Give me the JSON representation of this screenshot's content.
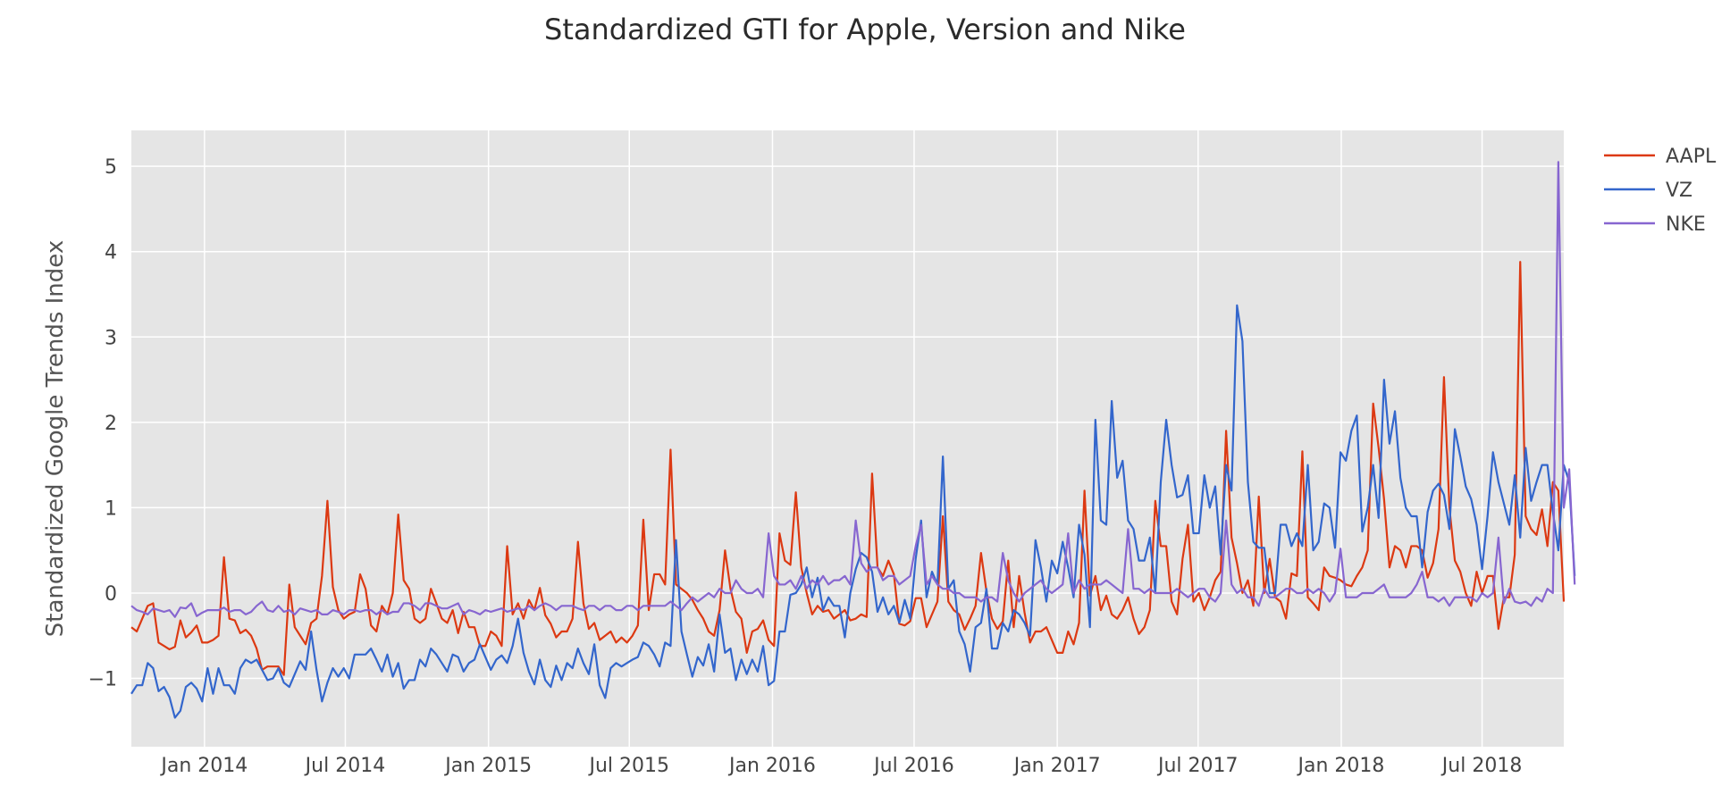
{
  "chart_data": {
    "type": "line",
    "title": "Standardized GTI for Apple, Version and Nike",
    "xlabel": "",
    "ylabel": "Standardized Google Trends Index",
    "x_start": "2013-09-29",
    "x_end": "2018-10-14",
    "x_step_days": 7,
    "ylim": [
      -1.8,
      5.42
    ],
    "yticks": [
      -1,
      0,
      1,
      2,
      3,
      4,
      5
    ],
    "ytick_labels": [
      "−1",
      "0",
      "1",
      "2",
      "3",
      "4",
      "5"
    ],
    "xticks": [
      {
        "date": "2014-01-01",
        "label": "Jan 2014"
      },
      {
        "date": "2014-07-01",
        "label": "Jul 2014"
      },
      {
        "date": "2015-01-01",
        "label": "Jan 2015"
      },
      {
        "date": "2015-07-01",
        "label": "Jul 2015"
      },
      {
        "date": "2016-01-01",
        "label": "Jan 2016"
      },
      {
        "date": "2016-07-01",
        "label": "Jul 2016"
      },
      {
        "date": "2017-01-01",
        "label": "Jan 2017"
      },
      {
        "date": "2017-07-01",
        "label": "Jul 2017"
      },
      {
        "date": "2018-01-01",
        "label": "Jan 2018"
      },
      {
        "date": "2018-07-01",
        "label": "Jul 2018"
      }
    ],
    "grid": true,
    "background": "#e5e5e5",
    "legend_position": "top-right",
    "series": [
      {
        "name": "AAPL",
        "color": "#dc3912",
        "values": [
          -0.4,
          -0.45,
          -0.3,
          -0.15,
          -0.12,
          -0.58,
          -0.62,
          -0.66,
          -0.63,
          -0.32,
          -0.52,
          -0.46,
          -0.38,
          -0.58,
          -0.58,
          -0.55,
          -0.5,
          0.42,
          -0.3,
          -0.32,
          -0.47,
          -0.43,
          -0.5,
          -0.65,
          -0.9,
          -0.86,
          -0.86,
          -0.86,
          -0.96,
          0.1,
          -0.4,
          -0.5,
          -0.6,
          -0.35,
          -0.3,
          0.2,
          1.08,
          0.07,
          -0.2,
          -0.3,
          -0.25,
          -0.22,
          0.22,
          0.05,
          -0.38,
          -0.45,
          -0.15,
          -0.25,
          0.0,
          0.92,
          0.15,
          0.05,
          -0.3,
          -0.35,
          -0.3,
          0.05,
          -0.12,
          -0.3,
          -0.35,
          -0.2,
          -0.47,
          -0.22,
          -0.4,
          -0.4,
          -0.62,
          -0.62,
          -0.45,
          -0.5,
          -0.62,
          0.55,
          -0.25,
          -0.12,
          -0.3,
          -0.08,
          -0.2,
          0.06,
          -0.26,
          -0.36,
          -0.52,
          -0.45,
          -0.45,
          -0.3,
          0.6,
          -0.12,
          -0.42,
          -0.35,
          -0.55,
          -0.5,
          -0.45,
          -0.58,
          -0.52,
          -0.58,
          -0.5,
          -0.38,
          0.86,
          -0.2,
          0.22,
          0.22,
          0.1,
          1.68,
          0.1,
          0.05,
          0.0,
          -0.08,
          -0.2,
          -0.3,
          -0.45,
          -0.5,
          -0.2,
          0.5,
          0.05,
          -0.22,
          -0.3,
          -0.7,
          -0.45,
          -0.42,
          -0.32,
          -0.55,
          -0.62,
          0.7,
          0.38,
          0.33,
          1.18,
          0.3,
          0.0,
          -0.25,
          -0.15,
          -0.22,
          -0.2,
          -0.3,
          -0.25,
          -0.2,
          -0.32,
          -0.3,
          -0.25,
          -0.28,
          1.4,
          0.3,
          0.2,
          0.38,
          0.22,
          -0.36,
          -0.38,
          -0.33,
          -0.06,
          -0.06,
          -0.4,
          -0.25,
          -0.1,
          0.9,
          -0.1,
          -0.2,
          -0.25,
          -0.43,
          -0.3,
          -0.15,
          0.47,
          0.02,
          -0.3,
          -0.42,
          -0.33,
          0.38,
          -0.4,
          0.2,
          -0.23,
          -0.58,
          -0.45,
          -0.45,
          -0.4,
          -0.55,
          -0.7,
          -0.7,
          -0.45,
          -0.6,
          -0.35,
          1.2,
          -0.03,
          0.2,
          -0.2,
          -0.03,
          -0.25,
          -0.3,
          -0.2,
          -0.05,
          -0.3,
          -0.48,
          -0.4,
          -0.2,
          1.08,
          0.55,
          0.55,
          -0.1,
          -0.25,
          0.4,
          0.8,
          -0.1,
          0.0,
          -0.2,
          -0.05,
          0.15,
          0.25,
          1.9,
          0.65,
          0.35,
          0.0,
          0.15,
          -0.15,
          1.13,
          0.0,
          0.4,
          -0.05,
          -0.1,
          -0.3,
          0.23,
          0.2,
          1.66,
          -0.05,
          -0.12,
          -0.2,
          0.3,
          0.2,
          0.18,
          0.15,
          0.1,
          0.08,
          0.2,
          0.3,
          0.5,
          2.22,
          1.7,
          1.1,
          0.3,
          0.55,
          0.5,
          0.3,
          0.55,
          0.55,
          0.5,
          0.18,
          0.35,
          0.75,
          2.53,
          1.0,
          0.38,
          0.25,
          0.0,
          -0.15,
          0.25,
          0.0,
          0.2,
          0.2,
          -0.42,
          -0.05,
          -0.05,
          0.45,
          3.88,
          0.9,
          0.75,
          0.68,
          0.98,
          0.55,
          1.3,
          1.2,
          -0.1
        ]
      },
      {
        "name": "VZ",
        "color": "#3366cc",
        "values": [
          -1.18,
          -1.08,
          -1.08,
          -0.82,
          -0.88,
          -1.15,
          -1.1,
          -1.22,
          -1.46,
          -1.38,
          -1.1,
          -1.05,
          -1.12,
          -1.27,
          -0.88,
          -1.18,
          -0.88,
          -1.08,
          -1.08,
          -1.18,
          -0.88,
          -0.78,
          -0.82,
          -0.78,
          -0.9,
          -1.02,
          -1.0,
          -0.88,
          -1.05,
          -1.1,
          -0.95,
          -0.8,
          -0.9,
          -0.45,
          -0.9,
          -1.27,
          -1.05,
          -0.88,
          -0.98,
          -0.88,
          -1.0,
          -0.72,
          -0.72,
          -0.72,
          -0.65,
          -0.78,
          -0.92,
          -0.72,
          -0.98,
          -0.82,
          -1.12,
          -1.02,
          -1.02,
          -0.78,
          -0.86,
          -0.65,
          -0.72,
          -0.82,
          -0.92,
          -0.72,
          -0.75,
          -0.92,
          -0.82,
          -0.78,
          -0.6,
          -0.75,
          -0.9,
          -0.78,
          -0.73,
          -0.82,
          -0.62,
          -0.3,
          -0.7,
          -0.92,
          -1.07,
          -0.78,
          -1.02,
          -1.1,
          -0.85,
          -1.02,
          -0.82,
          -0.88,
          -0.65,
          -0.82,
          -0.95,
          -0.6,
          -1.08,
          -1.23,
          -0.88,
          -0.82,
          -0.86,
          -0.82,
          -0.78,
          -0.75,
          -0.58,
          -0.62,
          -0.72,
          -0.86,
          -0.58,
          -0.62,
          0.62,
          -0.45,
          -0.72,
          -0.98,
          -0.75,
          -0.85,
          -0.6,
          -0.92,
          -0.25,
          -0.7,
          -0.65,
          -1.02,
          -0.78,
          -0.95,
          -0.78,
          -0.92,
          -0.62,
          -1.08,
          -1.03,
          -0.45,
          -0.45,
          -0.02,
          0.0,
          0.1,
          0.3,
          -0.05,
          0.18,
          -0.2,
          -0.05,
          -0.15,
          -0.15,
          -0.52,
          0.0,
          0.28,
          0.47,
          0.42,
          0.25,
          -0.22,
          -0.05,
          -0.25,
          -0.15,
          -0.35,
          -0.08,
          -0.3,
          0.4,
          0.85,
          -0.05,
          0.25,
          0.1,
          1.6,
          0.05,
          0.15,
          -0.45,
          -0.6,
          -0.92,
          -0.4,
          -0.35,
          0.05,
          -0.65,
          -0.65,
          -0.35,
          -0.45,
          -0.2,
          -0.25,
          -0.35,
          -0.5,
          0.62,
          0.3,
          -0.1,
          0.38,
          0.23,
          0.6,
          0.3,
          -0.05,
          0.8,
          0.45,
          -0.4,
          2.03,
          0.85,
          0.8,
          2.25,
          1.35,
          1.55,
          0.85,
          0.75,
          0.38,
          0.38,
          0.65,
          0.0,
          1.3,
          2.03,
          1.5,
          1.12,
          1.15,
          1.38,
          0.7,
          0.7,
          1.38,
          1.0,
          1.25,
          0.45,
          1.5,
          1.2,
          3.37,
          2.95,
          1.3,
          0.6,
          0.53,
          0.53,
          0.0,
          0.0,
          0.8,
          0.8,
          0.55,
          0.7,
          0.55,
          1.5,
          0.5,
          0.6,
          1.05,
          1.0,
          0.53,
          1.65,
          1.55,
          1.9,
          2.08,
          0.72,
          1.0,
          1.5,
          0.88,
          2.5,
          1.75,
          2.13,
          1.35,
          1.0,
          0.9,
          0.9,
          0.3,
          0.95,
          1.2,
          1.28,
          1.15,
          0.75,
          1.92,
          1.6,
          1.25,
          1.1,
          0.8,
          0.28,
          0.9,
          1.65,
          1.3,
          1.05,
          0.8,
          1.38,
          0.65,
          1.7,
          1.08,
          1.3,
          1.5,
          1.5,
          0.95,
          0.5,
          1.5,
          1.3,
          0.2
        ]
      },
      {
        "name": "NKE",
        "color": "#8766d0",
        "values": [
          -0.15,
          -0.2,
          -0.22,
          -0.25,
          -0.18,
          -0.2,
          -0.22,
          -0.2,
          -0.28,
          -0.17,
          -0.18,
          -0.12,
          -0.27,
          -0.23,
          -0.2,
          -0.2,
          -0.2,
          -0.17,
          -0.22,
          -0.2,
          -0.2,
          -0.25,
          -0.22,
          -0.15,
          -0.1,
          -0.2,
          -0.22,
          -0.15,
          -0.22,
          -0.2,
          -0.25,
          -0.18,
          -0.2,
          -0.22,
          -0.2,
          -0.25,
          -0.25,
          -0.2,
          -0.22,
          -0.25,
          -0.2,
          -0.2,
          -0.22,
          -0.2,
          -0.2,
          -0.25,
          -0.2,
          -0.25,
          -0.22,
          -0.22,
          -0.12,
          -0.12,
          -0.15,
          -0.2,
          -0.12,
          -0.12,
          -0.15,
          -0.18,
          -0.18,
          -0.15,
          -0.12,
          -0.25,
          -0.2,
          -0.22,
          -0.25,
          -0.2,
          -0.22,
          -0.2,
          -0.18,
          -0.22,
          -0.2,
          -0.18,
          -0.2,
          -0.15,
          -0.2,
          -0.15,
          -0.12,
          -0.15,
          -0.2,
          -0.15,
          -0.15,
          -0.15,
          -0.18,
          -0.2,
          -0.15,
          -0.15,
          -0.2,
          -0.15,
          -0.15,
          -0.2,
          -0.2,
          -0.15,
          -0.15,
          -0.2,
          -0.15,
          -0.15,
          -0.15,
          -0.15,
          -0.15,
          -0.1,
          -0.15,
          -0.2,
          -0.12,
          -0.05,
          -0.1,
          -0.05,
          0.0,
          -0.05,
          0.05,
          0.0,
          0.0,
          0.15,
          0.05,
          0.0,
          0.0,
          0.05,
          -0.05,
          0.7,
          0.2,
          0.1,
          0.1,
          0.15,
          0.05,
          0.2,
          0.05,
          0.15,
          0.1,
          0.2,
          0.1,
          0.15,
          0.15,
          0.2,
          0.1,
          0.85,
          0.35,
          0.25,
          0.3,
          0.3,
          0.15,
          0.2,
          0.2,
          0.1,
          0.15,
          0.2,
          0.55,
          0.8,
          0.1,
          0.2,
          0.1,
          0.05,
          0.05,
          0.0,
          0.0,
          -0.05,
          -0.05,
          -0.05,
          -0.1,
          -0.05,
          -0.05,
          -0.1,
          0.47,
          0.15,
          0.0,
          -0.1,
          0.0,
          0.05,
          0.1,
          0.15,
          0.05,
          0.0,
          0.05,
          0.1,
          0.7,
          0.0,
          0.15,
          0.05,
          0.1,
          0.1,
          0.1,
          0.15,
          0.1,
          0.05,
          0.0,
          0.75,
          0.05,
          0.05,
          0.0,
          0.05,
          0.0,
          0.0,
          0.0,
          0.0,
          0.05,
          0.0,
          -0.05,
          0.0,
          0.05,
          0.05,
          -0.05,
          -0.1,
          0.0,
          0.85,
          0.1,
          0.0,
          0.05,
          -0.05,
          -0.05,
          -0.15,
          0.05,
          -0.05,
          -0.05,
          0.0,
          0.05,
          0.05,
          0.0,
          0.0,
          0.05,
          0.0,
          0.05,
          0.0,
          -0.1,
          0.0,
          0.52,
          -0.05,
          -0.05,
          -0.05,
          0.0,
          0.0,
          0.0,
          0.05,
          0.1,
          -0.05,
          -0.05,
          -0.05,
          -0.05,
          0.0,
          0.1,
          0.25,
          -0.05,
          -0.05,
          -0.1,
          -0.05,
          -0.15,
          -0.05,
          -0.05,
          -0.05,
          -0.05,
          -0.1,
          0.0,
          -0.05,
          0.0,
          0.65,
          -0.12,
          0.05,
          -0.1,
          -0.12,
          -0.1,
          -0.15,
          -0.05,
          -0.1,
          0.05,
          0.0,
          5.05,
          1.0,
          1.45,
          0.1
        ]
      }
    ]
  }
}
